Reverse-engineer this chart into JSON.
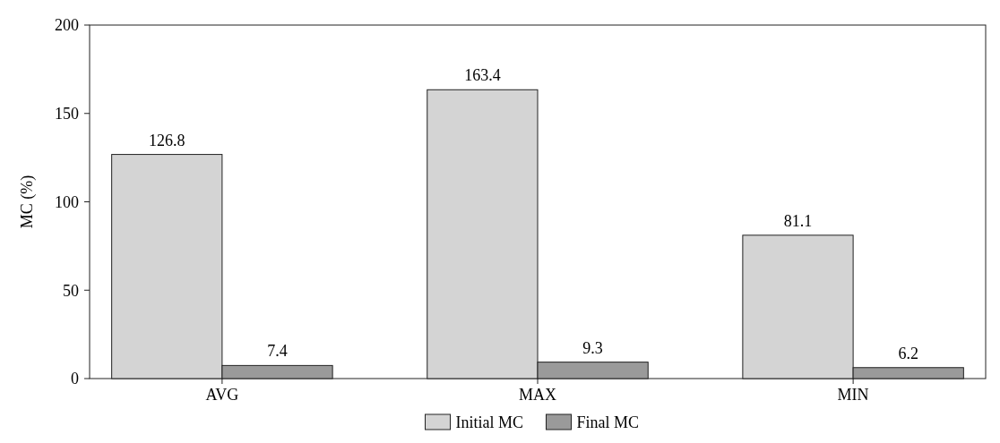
{
  "chart_data": {
    "type": "bar",
    "ylabel": "MC (%)",
    "categories": [
      "AVG",
      "MAX",
      "MIN"
    ],
    "series": [
      {
        "name": "Initial MC",
        "color": "#d4d4d4",
        "values": [
          126.8,
          163.4,
          81.1
        ]
      },
      {
        "name": "Final MC",
        "color": "#9a9a9a",
        "values": [
          7.4,
          9.3,
          6.2
        ]
      }
    ],
    "ylim": [
      0,
      200
    ],
    "yticks": [
      0,
      50,
      100,
      150,
      200
    ],
    "data_labels": true,
    "legend": "bottom",
    "grid": false
  }
}
